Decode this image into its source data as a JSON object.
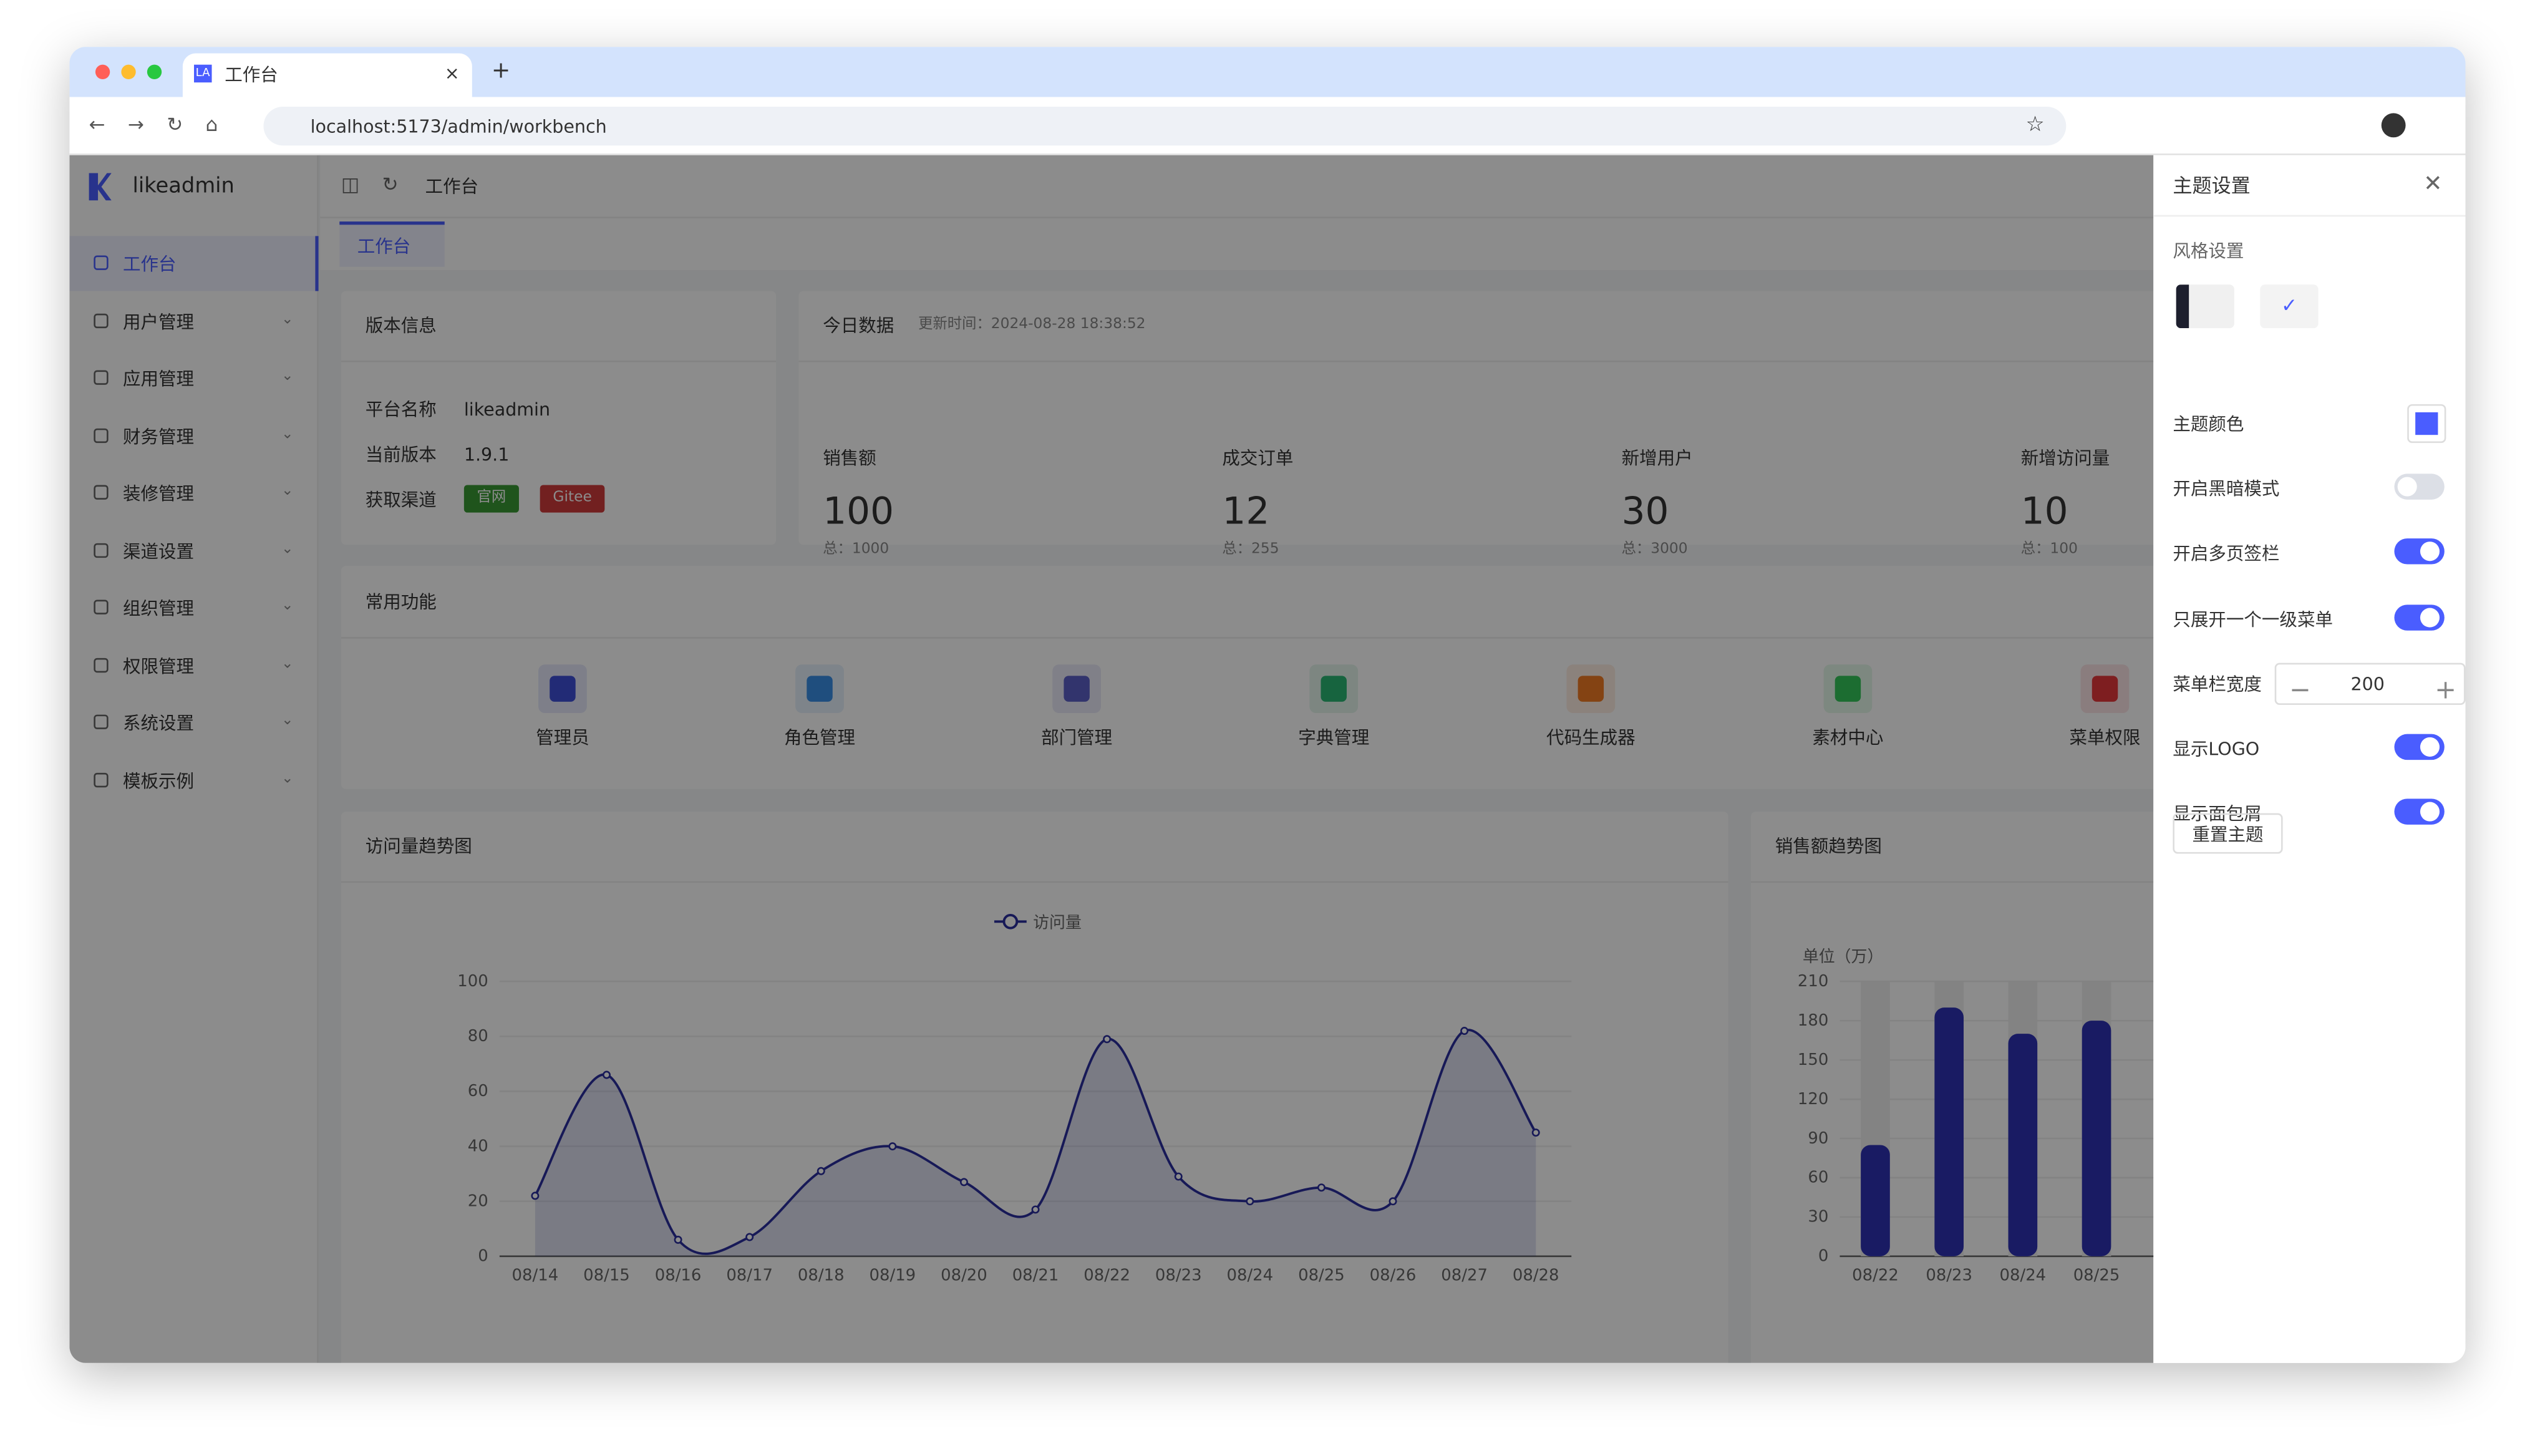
{
  "browser": {
    "tab_icon": "LA",
    "tab_title": "工作台",
    "url": "localhost:5173/admin/workbench"
  },
  "sidebar": {
    "logo": "likeadmin",
    "menu": [
      "工作台",
      "用户管理",
      "应用管理",
      "财务管理",
      "装修管理",
      "渠道设置",
      "组织管理",
      "权限管理",
      "系统设置",
      "模板示例"
    ]
  },
  "header": {
    "breadcrumb": "工作台",
    "tab": "工作台"
  },
  "version": {
    "title": "版本信息",
    "rows": [
      [
        "平台名称",
        "likeadmin"
      ],
      [
        "当前版本",
        "1.9.1"
      ]
    ],
    "channel_label": "获取渠道",
    "channels": [
      "官网",
      "Gitee"
    ]
  },
  "today": {
    "title": "今日数据",
    "updated": "更新时间：2024-08-28 18:38:52",
    "stats": [
      {
        "label": "销售额",
        "value": 100,
        "total": "总：1000"
      },
      {
        "label": "成交订单",
        "value": 12,
        "total": "总：255"
      },
      {
        "label": "新增用户",
        "value": 30,
        "total": "总：3000"
      },
      {
        "label": "新增访问量",
        "value": 10,
        "total": "总：100"
      }
    ]
  },
  "functions": {
    "title": "常用功能",
    "items": [
      {
        "label": "管理员",
        "color": "#3e4fd8"
      },
      {
        "label": "角色管理",
        "color": "#3a8ee6"
      },
      {
        "label": "部门管理",
        "color": "#5b5fc7"
      },
      {
        "label": "字典管理",
        "color": "#2bb673"
      },
      {
        "label": "代码生成器",
        "color": "#f07b24"
      },
      {
        "label": "素材中心",
        "color": "#34c759"
      },
      {
        "label": "菜单权限",
        "color": "#e5383b"
      }
    ]
  },
  "visits": {
    "type": "line",
    "title": "访问量趋势图",
    "series_name": "访问量",
    "color": "#2b2f9e",
    "categories": [
      "08/14",
      "08/15",
      "08/16",
      "08/17",
      "08/18",
      "08/19",
      "08/20",
      "08/21",
      "08/22",
      "08/23",
      "08/24",
      "08/25",
      "08/26",
      "08/27",
      "08/28"
    ],
    "values": [
      22,
      66,
      6,
      7,
      31,
      40,
      27,
      17,
      79,
      29,
      20,
      25,
      20,
      82,
      45
    ],
    "ylim": [
      0,
      100
    ],
    "yticks": [
      0,
      20,
      40,
      60,
      80,
      100
    ]
  },
  "sales": {
    "type": "bar",
    "title": "销售额趋势图",
    "unit": "单位（万）",
    "color": "#2e32b5",
    "categories": [
      "08/22",
      "08/23",
      "08/24",
      "08/25"
    ],
    "values": [
      85,
      190,
      170,
      180
    ],
    "ylim": [
      0,
      210
    ],
    "yticks": [
      0,
      30,
      60,
      90,
      120,
      150,
      180,
      210
    ]
  },
  "theme": {
    "title": "主题设置",
    "style_label": "风格设置",
    "settings": [
      {
        "label": "主题颜色",
        "color": "#4a5dff"
      },
      {
        "label": "开启黑暗模式",
        "on": false
      },
      {
        "label": "开启多页签栏",
        "on": true
      },
      {
        "label": "只展开一个一级菜单",
        "on": true
      },
      {
        "label": "菜单栏宽度",
        "value": 200
      },
      {
        "label": "显示LOGO",
        "on": true
      },
      {
        "label": "显示面包屑",
        "on": true
      }
    ],
    "reset": "重置主题"
  }
}
